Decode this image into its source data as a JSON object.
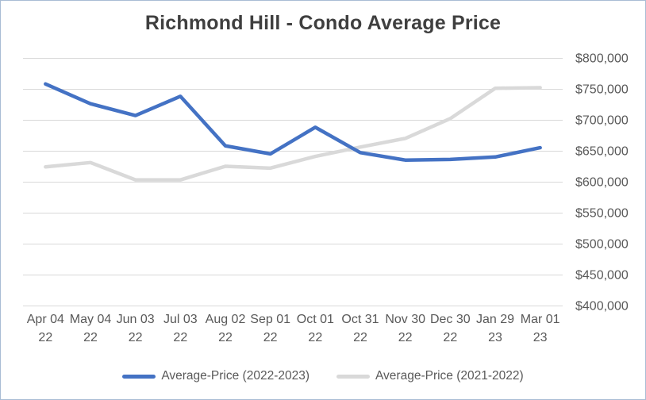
{
  "title": "Richmond Hill - Condo Average Price",
  "chart_data": {
    "type": "line",
    "title": "Richmond Hill - Condo Average Price",
    "categories": [
      [
        "Apr 04",
        "22"
      ],
      [
        "May 04",
        "22"
      ],
      [
        "Jun 03",
        "22"
      ],
      [
        "Jul 03",
        "22"
      ],
      [
        "Aug 02",
        "22"
      ],
      [
        "Sep 01",
        "22"
      ],
      [
        "Oct 01",
        "22"
      ],
      [
        "Oct 31",
        "22"
      ],
      [
        "Nov 30",
        "22"
      ],
      [
        "Dec 30",
        "22"
      ],
      [
        "Jan 29",
        "23"
      ],
      [
        "Mar 01",
        "23"
      ]
    ],
    "series": [
      {
        "name": "Average-Price (2022-2023)",
        "color": "#4472C4",
        "values": [
          758000,
          726000,
          707000,
          738000,
          658000,
          645000,
          688000,
          647000,
          635000,
          636000,
          640000,
          655000
        ]
      },
      {
        "name": "Average-Price (2021-2022)",
        "color": "#D9D9D9",
        "values": [
          624000,
          631000,
          603000,
          603000,
          625000,
          622000,
          641000,
          656000,
          670000,
          702000,
          751000,
          752000
        ]
      }
    ],
    "ylim": [
      400000,
      800000
    ],
    "ytick_step": 50000,
    "ytick_labels": [
      "$400,000",
      "$450,000",
      "$500,000",
      "$550,000",
      "$600,000",
      "$650,000",
      "$700,000",
      "$750,000",
      "$800,000"
    ],
    "grid": true,
    "gridline_color": "#d9d9d9",
    "axis_text_color": "#595959",
    "yaxis_side": "right",
    "legend_position": "bottom"
  }
}
